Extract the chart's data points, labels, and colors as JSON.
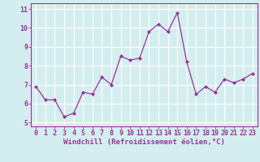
{
  "x": [
    0,
    1,
    2,
    3,
    4,
    5,
    6,
    7,
    8,
    9,
    10,
    11,
    12,
    13,
    14,
    15,
    16,
    17,
    18,
    19,
    20,
    21,
    22,
    23
  ],
  "y": [
    6.9,
    6.2,
    6.2,
    5.3,
    5.5,
    6.6,
    6.5,
    7.4,
    7.0,
    8.5,
    8.3,
    8.4,
    9.8,
    10.2,
    9.8,
    10.8,
    8.2,
    6.5,
    6.9,
    6.6,
    7.3,
    7.1,
    7.3,
    7.6
  ],
  "line_color": "#993399",
  "marker": "D",
  "marker_size": 2.0,
  "line_width": 0.9,
  "bg_color": "#d4eef0",
  "grid_color": "#ffffff",
  "xlabel": "Windchill (Refroidissement éolien,°C)",
  "xlabel_color": "#993399",
  "xlabel_fontsize": 6.5,
  "tick_color": "#993399",
  "tick_fontsize": 6.0,
  "ytick_values": [
    5,
    6,
    7,
    8,
    9,
    10,
    11
  ],
  "xlim": [
    -0.5,
    23.5
  ],
  "ylim": [
    4.8,
    11.3
  ],
  "spine_color": "#993399"
}
